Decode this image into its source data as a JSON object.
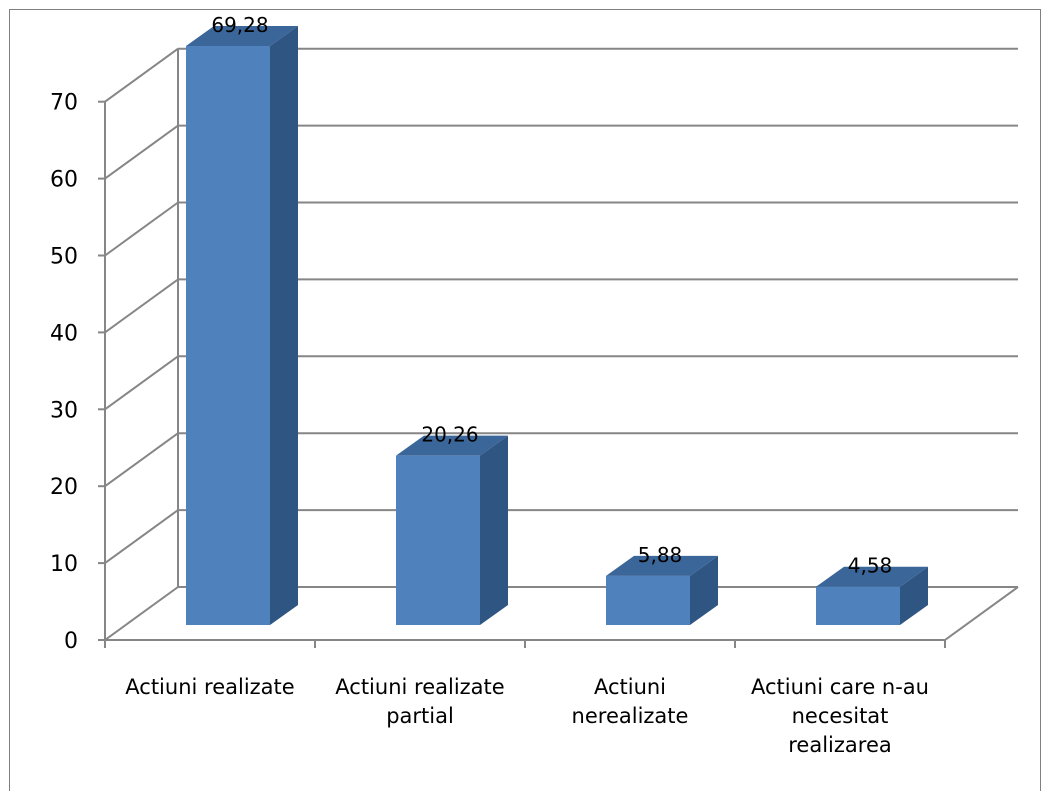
{
  "chart_data": {
    "type": "bar",
    "three_d": true,
    "categories": [
      [
        "Actiuni  realizate"
      ],
      [
        "Actiuni  realizate",
        "partial"
      ],
      [
        "Actiuni",
        "nerealizate"
      ],
      [
        "Actiuni care n-au",
        "necesitat",
        "realizarea"
      ]
    ],
    "values": [
      69.28,
      20.26,
      5.88,
      4.58
    ],
    "data_labels": [
      "69,28",
      "20,26",
      "5,88",
      "4,58"
    ],
    "y_ticks": [
      "0",
      "10",
      "20",
      "30",
      "40",
      "50",
      "60",
      "70"
    ],
    "ylim": [
      0,
      70
    ],
    "grid": true,
    "legend": "none",
    "colors": {
      "bar_front": "#4F81BD",
      "bar_side": "#2F5582",
      "bar_top": "#3B6699",
      "grid": "#868686",
      "frame": "#7F7F7F"
    }
  }
}
